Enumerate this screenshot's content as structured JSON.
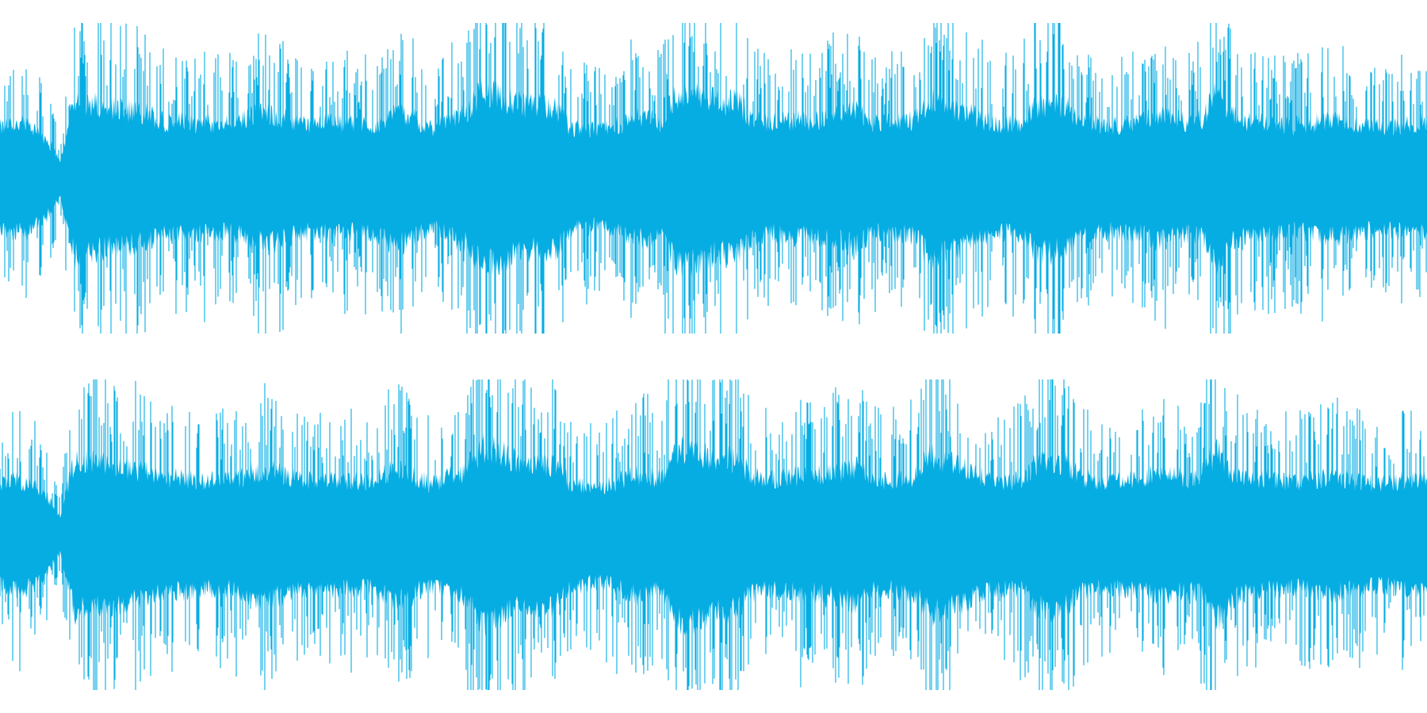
{
  "waveform": {
    "color": "#06ADE3",
    "background": "#FFFFFF",
    "channels": [
      {
        "name": "",
        "envelope": [
          0.55,
          0.6,
          0.58,
          0.45,
          0.2,
          0.85,
          0.82,
          0.78,
          0.76,
          0.72,
          0.7,
          0.62,
          0.62,
          0.6,
          0.6,
          0.6,
          0.62,
          0.7,
          0.72,
          0.65,
          0.6,
          0.58,
          0.62,
          0.6,
          0.58,
          0.6,
          0.7,
          0.72,
          0.6,
          0.55,
          0.65,
          0.7,
          0.95,
          0.92,
          0.85,
          0.78,
          0.8,
          0.78,
          0.55,
          0.55,
          0.52,
          0.58,
          0.65,
          0.68,
          0.6,
          0.92,
          0.95,
          0.88,
          0.82,
          0.85,
          0.65,
          0.6,
          0.62,
          0.65,
          0.62,
          0.68,
          0.7,
          0.75,
          0.62,
          0.6,
          0.62,
          0.65,
          0.9,
          0.8,
          0.75,
          0.68,
          0.6,
          0.6,
          0.62,
          0.8,
          0.82,
          0.78,
          0.62,
          0.6,
          0.58,
          0.6,
          0.62,
          0.68,
          0.65,
          0.62,
          0.65,
          0.95,
          0.7,
          0.62,
          0.6,
          0.6,
          0.58,
          0.6,
          0.62,
          0.65,
          0.6,
          0.58,
          0.55,
          0.58,
          0.6,
          0.6
        ]
      },
      {
        "name": "",
        "envelope": [
          0.55,
          0.6,
          0.58,
          0.45,
          0.2,
          0.85,
          0.82,
          0.78,
          0.76,
          0.72,
          0.7,
          0.62,
          0.62,
          0.6,
          0.6,
          0.6,
          0.62,
          0.7,
          0.72,
          0.65,
          0.6,
          0.58,
          0.62,
          0.6,
          0.58,
          0.6,
          0.7,
          0.72,
          0.6,
          0.55,
          0.65,
          0.7,
          0.95,
          0.92,
          0.85,
          0.78,
          0.8,
          0.78,
          0.55,
          0.55,
          0.52,
          0.58,
          0.65,
          0.68,
          0.6,
          0.92,
          0.95,
          0.88,
          0.82,
          0.85,
          0.65,
          0.6,
          0.62,
          0.65,
          0.62,
          0.68,
          0.7,
          0.75,
          0.62,
          0.6,
          0.62,
          0.65,
          0.9,
          0.8,
          0.75,
          0.68,
          0.6,
          0.6,
          0.62,
          0.8,
          0.82,
          0.78,
          0.62,
          0.6,
          0.58,
          0.6,
          0.62,
          0.68,
          0.65,
          0.62,
          0.65,
          0.95,
          0.7,
          0.62,
          0.6,
          0.6,
          0.58,
          0.6,
          0.62,
          0.65,
          0.6,
          0.58,
          0.55,
          0.58,
          0.6,
          0.6
        ]
      }
    ]
  }
}
